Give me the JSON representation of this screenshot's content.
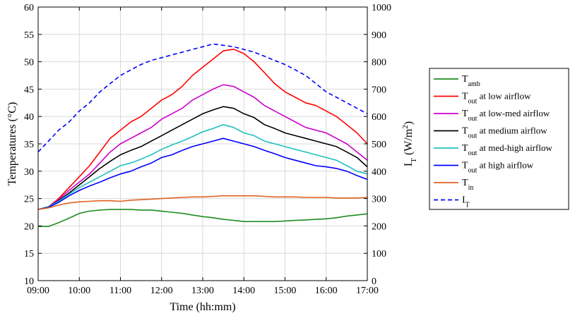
{
  "chart_data": {
    "type": "line",
    "xlabel": "Time (hh:mm)",
    "ylabel_left_main": "Temperatures (",
    "ylabel_left_unit": "°C)",
    "ylabel_right_main": "I",
    "ylabel_right_sub": "T",
    "ylabel_right_unit": " (W/m",
    "ylabel_right_sup": "2",
    "ylabel_right_close": ")",
    "x_ticks": [
      "09:00",
      "10:00",
      "11:00",
      "12:00",
      "13:00",
      "14:00",
      "15:00",
      "16:00",
      "17:00"
    ],
    "xlim": [
      9,
      17
    ],
    "y_left_ticks": [
      10,
      15,
      20,
      25,
      30,
      35,
      40,
      45,
      50,
      55,
      60
    ],
    "ylim_left": [
      10,
      60
    ],
    "y_right_ticks": [
      0,
      100,
      200,
      300,
      400,
      500,
      600,
      700,
      800,
      900,
      1000
    ],
    "ylim_right": [
      0,
      1000
    ],
    "grid": true,
    "legend_position": "right-outside",
    "series": [
      {
        "name_main": "T",
        "name_sub": "amb",
        "name_rest": "",
        "color": "#1f8c1f",
        "dash": "solid",
        "axis": "left",
        "x": [
          9,
          9.25,
          9.5,
          9.75,
          10,
          10.25,
          10.5,
          10.75,
          11,
          11.25,
          11.5,
          11.75,
          12,
          12.25,
          12.5,
          12.75,
          13,
          13.25,
          13.5,
          13.75,
          14,
          14.25,
          14.5,
          14.75,
          15,
          15.25,
          15.5,
          15.75,
          16,
          16.25,
          16.5,
          16.75,
          17
        ],
        "y": [
          19.9,
          19.9,
          20.6,
          21.4,
          22.3,
          22.7,
          22.9,
          23.0,
          23.0,
          23.0,
          22.9,
          22.9,
          22.7,
          22.5,
          22.3,
          22.0,
          21.7,
          21.5,
          21.2,
          21.0,
          20.8,
          20.8,
          20.8,
          20.8,
          20.9,
          21.0,
          21.1,
          21.2,
          21.3,
          21.5,
          21.8,
          22.0,
          22.2
        ]
      },
      {
        "name_main": "T",
        "name_sub": "out",
        "name_rest": " at low airflow",
        "color": "#ff0000",
        "dash": "solid",
        "axis": "left",
        "x": [
          9,
          9.25,
          9.5,
          9.75,
          10,
          10.25,
          10.5,
          10.75,
          11,
          11.25,
          11.5,
          11.75,
          12,
          12.25,
          12.5,
          12.75,
          13,
          13.25,
          13.5,
          13.75,
          14,
          14.25,
          14.5,
          14.75,
          15,
          15.25,
          15.5,
          15.75,
          16,
          16.25,
          16.5,
          16.75,
          17
        ],
        "y": [
          23.0,
          23.5,
          25.0,
          27.0,
          29.0,
          31.0,
          33.5,
          36.0,
          37.5,
          39.0,
          40.0,
          41.5,
          43.0,
          44.0,
          45.5,
          47.5,
          49.0,
          50.5,
          52.0,
          52.3,
          51.5,
          50.0,
          48.0,
          46.0,
          44.5,
          43.5,
          42.5,
          42.0,
          41.0,
          40.0,
          38.5,
          37.0,
          35.0
        ]
      },
      {
        "name_main": "T",
        "name_sub": "out",
        "name_rest": " at low-med airflow",
        "color": "#cc00cc",
        "dash": "solid",
        "axis": "left",
        "x": [
          9,
          9.25,
          9.5,
          9.75,
          10,
          10.25,
          10.5,
          10.75,
          11,
          11.25,
          11.5,
          11.75,
          12,
          12.25,
          12.5,
          12.75,
          13,
          13.25,
          13.5,
          13.75,
          14,
          14.25,
          14.5,
          14.75,
          15,
          15.25,
          15.5,
          15.75,
          16,
          16.25,
          16.5,
          16.75,
          17
        ],
        "y": [
          23.0,
          23.5,
          24.8,
          26.5,
          28.0,
          29.5,
          31.5,
          33.5,
          35.0,
          36.0,
          37.0,
          38.0,
          39.5,
          40.5,
          41.5,
          43.0,
          44.0,
          45.0,
          45.8,
          45.5,
          44.5,
          43.5,
          42.0,
          41.0,
          40.0,
          39.0,
          38.0,
          37.5,
          37.0,
          36.0,
          35.0,
          33.5,
          32.0
        ]
      },
      {
        "name_main": "T",
        "name_sub": "out",
        "name_rest": " at medium airflow",
        "color": "#000000",
        "dash": "solid",
        "axis": "left",
        "x": [
          9,
          9.25,
          9.5,
          9.75,
          10,
          10.25,
          10.5,
          10.75,
          11,
          11.25,
          11.5,
          11.75,
          12,
          12.25,
          12.5,
          12.75,
          13,
          13.25,
          13.5,
          13.75,
          14,
          14.25,
          14.5,
          14.75,
          15,
          15.25,
          15.5,
          15.75,
          16,
          16.25,
          16.5,
          16.75,
          17
        ],
        "y": [
          23.0,
          23.5,
          24.6,
          26.0,
          27.5,
          29.0,
          30.5,
          31.8,
          33.0,
          33.8,
          34.5,
          35.5,
          36.5,
          37.5,
          38.5,
          39.5,
          40.5,
          41.2,
          41.8,
          41.5,
          40.5,
          39.8,
          38.5,
          37.8,
          37.0,
          36.5,
          36.0,
          35.5,
          35.0,
          34.5,
          33.5,
          32.5,
          30.8
        ]
      },
      {
        "name_main": "T",
        "name_sub": "out",
        "name_rest": " at med-high airflow",
        "color": "#20c0c0",
        "dash": "solid",
        "axis": "left",
        "x": [
          9,
          9.25,
          9.5,
          9.75,
          10,
          10.25,
          10.5,
          10.75,
          11,
          11.25,
          11.5,
          11.75,
          12,
          12.25,
          12.5,
          12.75,
          13,
          13.25,
          13.5,
          13.75,
          14,
          14.25,
          14.5,
          14.75,
          15,
          15.25,
          15.5,
          15.75,
          16,
          16.25,
          16.5,
          16.75,
          17
        ],
        "y": [
          23.0,
          23.5,
          24.5,
          25.8,
          27.0,
          28.0,
          29.0,
          30.0,
          31.0,
          31.5,
          32.2,
          33.0,
          34.0,
          34.8,
          35.5,
          36.3,
          37.2,
          37.8,
          38.5,
          38.0,
          37.0,
          36.5,
          35.5,
          35.0,
          34.5,
          34.0,
          33.5,
          33.0,
          32.5,
          32.0,
          31.0,
          30.0,
          29.5
        ]
      },
      {
        "name_main": "T",
        "name_sub": "out",
        "name_rest": " at high airflow",
        "color": "#0000ff",
        "dash": "solid",
        "axis": "left",
        "x": [
          9,
          9.25,
          9.5,
          9.75,
          10,
          10.25,
          10.5,
          10.75,
          11,
          11.25,
          11.5,
          11.75,
          12,
          12.25,
          12.5,
          12.75,
          13,
          13.25,
          13.5,
          13.75,
          14,
          14.25,
          14.5,
          14.75,
          15,
          15.25,
          15.5,
          15.75,
          16,
          16.25,
          16.5,
          16.75,
          17
        ],
        "y": [
          23.0,
          23.4,
          24.3,
          25.5,
          26.5,
          27.3,
          28.0,
          28.8,
          29.5,
          30.0,
          30.8,
          31.5,
          32.5,
          33.0,
          33.8,
          34.5,
          35.0,
          35.5,
          36.0,
          35.5,
          35.0,
          34.5,
          33.8,
          33.2,
          32.5,
          32.0,
          31.5,
          31.0,
          30.8,
          30.5,
          30.0,
          29.2,
          28.5
        ]
      },
      {
        "name_main": "T",
        "name_sub": "in",
        "name_rest": "",
        "color": "#e06020",
        "dash": "solid",
        "axis": "left",
        "x": [
          9,
          9.25,
          9.5,
          9.75,
          10,
          10.25,
          10.5,
          10.75,
          11,
          11.25,
          11.5,
          11.75,
          12,
          12.25,
          12.5,
          12.75,
          13,
          13.25,
          13.5,
          13.75,
          14,
          14.25,
          14.5,
          14.75,
          15,
          15.25,
          15.5,
          15.75,
          16,
          16.25,
          16.5,
          16.75,
          17
        ],
        "y": [
          23.0,
          23.3,
          23.8,
          24.2,
          24.4,
          24.5,
          24.6,
          24.6,
          24.5,
          24.7,
          24.8,
          24.9,
          25.0,
          25.1,
          25.2,
          25.3,
          25.3,
          25.4,
          25.5,
          25.5,
          25.5,
          25.5,
          25.4,
          25.3,
          25.3,
          25.3,
          25.2,
          25.2,
          25.2,
          25.1,
          25.1,
          25.1,
          25.2
        ]
      },
      {
        "name_main": "I",
        "name_sub": "T",
        "name_rest": "",
        "color": "#0000ff",
        "dash": "dashed",
        "axis": "right",
        "x": [
          9,
          9.25,
          9.5,
          9.75,
          10,
          10.25,
          10.5,
          10.75,
          11,
          11.25,
          11.5,
          11.75,
          12,
          12.25,
          12.5,
          12.75,
          13,
          13.25,
          13.5,
          13.75,
          14,
          14.25,
          14.5,
          14.75,
          15,
          15.25,
          15.5,
          15.75,
          16,
          16.25,
          16.5,
          16.75,
          17
        ],
        "y": [
          470,
          510,
          550,
          580,
          620,
          650,
          690,
          720,
          750,
          770,
          790,
          805,
          815,
          825,
          835,
          845,
          855,
          865,
          860,
          855,
          845,
          835,
          820,
          805,
          790,
          770,
          750,
          720,
          690,
          670,
          650,
          630,
          610
        ]
      }
    ]
  }
}
